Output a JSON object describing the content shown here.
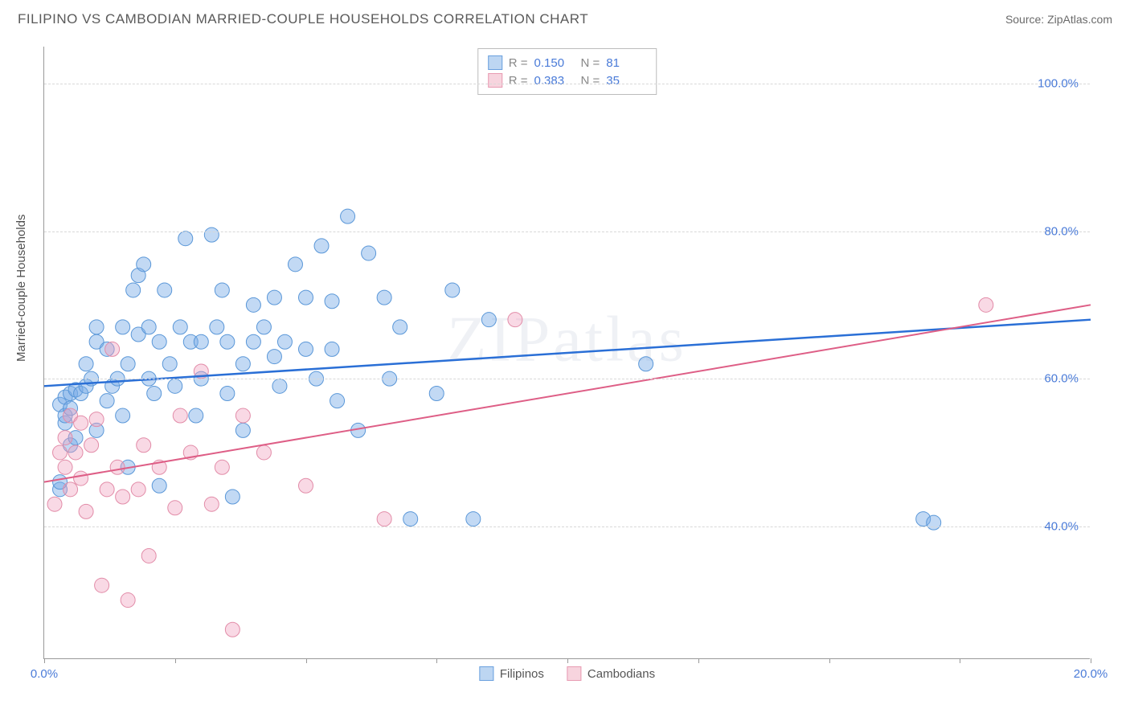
{
  "header": {
    "title": "FILIPINO VS CAMBODIAN MARRIED-COUPLE HOUSEHOLDS CORRELATION CHART",
    "source": "Source: ZipAtlas.com"
  },
  "chart": {
    "type": "scatter",
    "ylabel": "Married-couple Households",
    "watermark": "ZIPatlas",
    "xlim": [
      0,
      20
    ],
    "ylim": [
      22,
      105
    ],
    "xtick_positions": [
      0,
      2.5,
      5,
      7.5,
      10,
      12.5,
      15,
      17.5,
      20
    ],
    "xtick_labels": {
      "0": "0.0%",
      "20": "20.0%"
    },
    "ytick_positions": [
      40,
      60,
      80,
      100
    ],
    "ytick_labels": {
      "40": "40.0%",
      "60": "60.0%",
      "80": "80.0%",
      "100": "100.0%"
    },
    "grid_color": "#d8d8d8",
    "background_color": "#ffffff",
    "series": [
      {
        "name": "Filipinos",
        "color_fill": "rgba(120,170,230,0.45)",
        "color_stroke": "#5a97d8",
        "marker_radius": 9,
        "swatch_fill": "#bdd6f2",
        "swatch_stroke": "#6aa0de",
        "R": "0.150",
        "N": "81",
        "trend": {
          "x1": 0,
          "y1": 59.0,
          "x2": 20,
          "y2": 68.0,
          "color": "#2a6fd6",
          "width": 2.5
        },
        "points": [
          [
            0.3,
            45.0
          ],
          [
            0.3,
            46.0
          ],
          [
            0.3,
            56.5
          ],
          [
            0.4,
            54.0
          ],
          [
            0.4,
            55.0
          ],
          [
            0.4,
            57.5
          ],
          [
            0.5,
            51.0
          ],
          [
            0.5,
            56.0
          ],
          [
            0.5,
            58.0
          ],
          [
            0.6,
            52.0
          ],
          [
            0.6,
            58.5
          ],
          [
            0.7,
            58.0
          ],
          [
            0.8,
            62.0
          ],
          [
            0.8,
            59.0
          ],
          [
            0.9,
            60.0
          ],
          [
            1.0,
            53.0
          ],
          [
            1.0,
            65.0
          ],
          [
            1.0,
            67.0
          ],
          [
            1.2,
            64.0
          ],
          [
            1.2,
            57.0
          ],
          [
            1.3,
            59.0
          ],
          [
            1.4,
            60.0
          ],
          [
            1.5,
            55.0
          ],
          [
            1.5,
            67.0
          ],
          [
            1.6,
            62.0
          ],
          [
            1.6,
            48.0
          ],
          [
            1.7,
            72.0
          ],
          [
            1.8,
            74.0
          ],
          [
            1.8,
            66.0
          ],
          [
            1.9,
            75.5
          ],
          [
            2.0,
            60.0
          ],
          [
            2.0,
            67.0
          ],
          [
            2.1,
            58.0
          ],
          [
            2.2,
            45.5
          ],
          [
            2.2,
            65.0
          ],
          [
            2.3,
            72.0
          ],
          [
            2.4,
            62.0
          ],
          [
            2.5,
            59.0
          ],
          [
            2.6,
            67.0
          ],
          [
            2.7,
            79.0
          ],
          [
            2.8,
            65.0
          ],
          [
            2.9,
            55.0
          ],
          [
            3.0,
            60.0
          ],
          [
            3.0,
            65.0
          ],
          [
            3.2,
            79.5
          ],
          [
            3.3,
            67.0
          ],
          [
            3.4,
            72.0
          ],
          [
            3.5,
            58.0
          ],
          [
            3.5,
            65.0
          ],
          [
            3.6,
            44.0
          ],
          [
            3.8,
            53.0
          ],
          [
            3.8,
            62.0
          ],
          [
            4.0,
            65.0
          ],
          [
            4.0,
            70.0
          ],
          [
            4.2,
            67.0
          ],
          [
            4.4,
            63.0
          ],
          [
            4.4,
            71.0
          ],
          [
            4.5,
            59.0
          ],
          [
            4.6,
            65.0
          ],
          [
            4.8,
            75.5
          ],
          [
            5.0,
            64.0
          ],
          [
            5.0,
            71.0
          ],
          [
            5.2,
            60.0
          ],
          [
            5.3,
            78.0
          ],
          [
            5.5,
            70.5
          ],
          [
            5.5,
            64.0
          ],
          [
            5.6,
            57.0
          ],
          [
            5.8,
            82.0
          ],
          [
            6.0,
            53.0
          ],
          [
            6.2,
            77.0
          ],
          [
            6.5,
            71.0
          ],
          [
            6.6,
            60.0
          ],
          [
            6.8,
            67.0
          ],
          [
            7.0,
            41.0
          ],
          [
            7.5,
            58.0
          ],
          [
            7.8,
            72.0
          ],
          [
            8.2,
            41.0
          ],
          [
            8.5,
            68.0
          ],
          [
            11.5,
            62.0
          ],
          [
            16.8,
            41.0
          ],
          [
            17.0,
            40.5
          ]
        ]
      },
      {
        "name": "Cambodians",
        "color_fill": "rgba(240,160,190,0.40)",
        "color_stroke": "#e28ca8",
        "marker_radius": 9,
        "swatch_fill": "#f7d4de",
        "swatch_stroke": "#e89bb2",
        "R": "0.383",
        "N": "35",
        "trend": {
          "x1": 0,
          "y1": 46.0,
          "x2": 20,
          "y2": 70.0,
          "color": "#de5e86",
          "width": 2.0
        },
        "points": [
          [
            0.2,
            43.0
          ],
          [
            0.3,
            50.0
          ],
          [
            0.4,
            52.0
          ],
          [
            0.4,
            48.0
          ],
          [
            0.5,
            55.0
          ],
          [
            0.5,
            45.0
          ],
          [
            0.6,
            50.0
          ],
          [
            0.7,
            54.0
          ],
          [
            0.7,
            46.5
          ],
          [
            0.8,
            42.0
          ],
          [
            0.9,
            51.0
          ],
          [
            1.0,
            54.5
          ],
          [
            1.1,
            32.0
          ],
          [
            1.2,
            45.0
          ],
          [
            1.3,
            64.0
          ],
          [
            1.4,
            48.0
          ],
          [
            1.5,
            44.0
          ],
          [
            1.6,
            30.0
          ],
          [
            1.8,
            45.0
          ],
          [
            1.9,
            51.0
          ],
          [
            2.0,
            36.0
          ],
          [
            2.2,
            48.0
          ],
          [
            2.5,
            42.5
          ],
          [
            2.6,
            55.0
          ],
          [
            2.8,
            50.0
          ],
          [
            3.0,
            61.0
          ],
          [
            3.2,
            43.0
          ],
          [
            3.4,
            48.0
          ],
          [
            3.6,
            26.0
          ],
          [
            3.8,
            55.0
          ],
          [
            4.2,
            50.0
          ],
          [
            5.0,
            45.5
          ],
          [
            6.5,
            41.0
          ],
          [
            9.0,
            68.0
          ],
          [
            18.0,
            70.0
          ]
        ]
      }
    ],
    "legend_bottom": [
      {
        "label": "Filipinos",
        "swatch_fill": "#bdd6f2",
        "swatch_stroke": "#6aa0de"
      },
      {
        "label": "Cambodians",
        "swatch_fill": "#f7d4de",
        "swatch_stroke": "#e89bb2"
      }
    ]
  }
}
